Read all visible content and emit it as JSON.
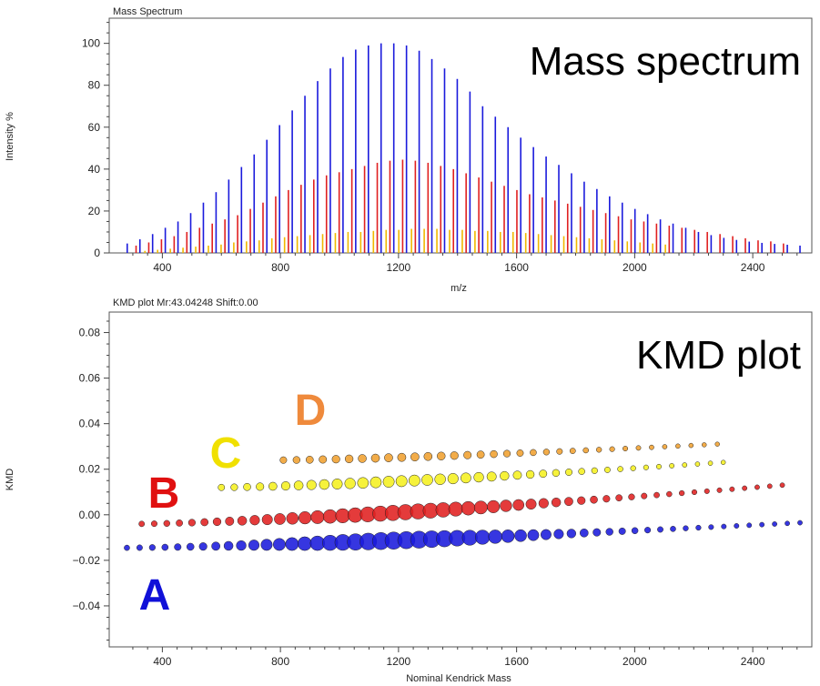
{
  "chart_data": [
    {
      "type": "bar",
      "panel_title": "Mass Spectrum",
      "title": "Mass spectrum",
      "xlabel": "m/z",
      "ylabel": "Intensity %",
      "xlim": [
        220,
        2600
      ],
      "ylim": [
        0,
        112
      ],
      "x_ticks": [
        400,
        800,
        1200,
        1600,
        2000,
        2400
      ],
      "y_ticks": [
        0,
        20,
        40,
        60,
        80,
        100
      ],
      "grid": false,
      "colors": {
        "A": "#1a1adc",
        "B": "#e02020",
        "C": "#f0b800"
      },
      "series": [
        {
          "name": "A",
          "x": [
            281,
            324,
            367,
            410,
            453,
            496,
            539,
            582,
            625,
            668,
            711,
            754,
            797,
            840,
            883,
            926,
            969,
            1012,
            1055,
            1098,
            1141,
            1184,
            1227,
            1270,
            1313,
            1356,
            1399,
            1442,
            1485,
            1528,
            1571,
            1614,
            1657,
            1700,
            1743,
            1786,
            1829,
            1872,
            1915,
            1958,
            2001,
            2044,
            2087,
            2130,
            2173,
            2216,
            2259,
            2302,
            2345,
            2388,
            2431,
            2474,
            2517,
            2560
          ],
          "values": [
            4.5,
            6.5,
            9,
            12,
            15,
            19,
            24,
            29,
            35,
            41,
            47,
            54,
            61,
            68,
            75,
            82,
            88,
            93.5,
            97,
            99,
            100,
            100,
            99,
            96.5,
            92.5,
            88,
            83,
            77,
            70,
            65,
            60,
            55,
            50.5,
            46,
            42,
            38,
            34,
            30.5,
            27,
            24,
            21,
            18.5,
            16,
            14,
            12,
            10,
            8.5,
            7.2,
            6.2,
            5.4,
            4.8,
            4.3,
            3.9,
            3.5
          ]
        },
        {
          "name": "B",
          "x": [
            311,
            354,
            397,
            440,
            483,
            526,
            569,
            612,
            655,
            698,
            741,
            784,
            827,
            870,
            913,
            956,
            999,
            1042,
            1085,
            1128,
            1171,
            1214,
            1257,
            1300,
            1343,
            1386,
            1429,
            1472,
            1515,
            1558,
            1601,
            1644,
            1687,
            1730,
            1773,
            1816,
            1859,
            1902,
            1945,
            1988,
            2031,
            2074,
            2117,
            2160,
            2203,
            2246,
            2289,
            2332,
            2375,
            2418,
            2461,
            2504
          ],
          "values": [
            3.5,
            5,
            6.5,
            8,
            10,
            12,
            14,
            16,
            18,
            21,
            24,
            27,
            30,
            32.5,
            35,
            37,
            38.5,
            40,
            41.5,
            43,
            44,
            44.5,
            44,
            43,
            41.5,
            40,
            38,
            36,
            34,
            32,
            30,
            28,
            26.5,
            25,
            23.5,
            22,
            20.5,
            19,
            17.5,
            16,
            15,
            14,
            13,
            12,
            11,
            10,
            9,
            8,
            7,
            6,
            5.5,
            4.5
          ]
        },
        {
          "name": "C",
          "x": [
            341,
            384,
            427,
            470,
            513,
            556,
            599,
            642,
            685,
            728,
            771,
            814,
            857,
            900,
            943,
            986,
            1029,
            1072,
            1115,
            1158,
            1201,
            1244,
            1287,
            1330,
            1373,
            1416,
            1459,
            1502,
            1545,
            1588,
            1631,
            1674,
            1717,
            1760,
            1803,
            1846,
            1889,
            1932,
            1975,
            2018,
            2061,
            2104
          ],
          "values": [
            1,
            1.5,
            2,
            2.5,
            3,
            3.5,
            4,
            5,
            5.5,
            6,
            7,
            7.5,
            8,
            8.5,
            9,
            9.5,
            10,
            10,
            10.5,
            11,
            11,
            11.5,
            11.5,
            11.5,
            11,
            11,
            10.5,
            10.5,
            10,
            10,
            9.5,
            9,
            8.5,
            8,
            7.5,
            7,
            6.5,
            6,
            5.5,
            5,
            4.5,
            4
          ]
        }
      ]
    },
    {
      "type": "scatter",
      "panel_title": "KMD plot  Mr:43.04248 Shift:0.00",
      "title": "KMD plot",
      "xlabel": "Nominal Kendrick Mass",
      "ylabel": "KMD",
      "xlim": [
        220,
        2600
      ],
      "ylim": [
        -0.058,
        0.089
      ],
      "x_ticks": [
        400,
        800,
        1200,
        1600,
        2000,
        2400
      ],
      "y_ticks": [
        -0.04,
        -0.02,
        0.0,
        0.02,
        0.04,
        0.06,
        0.08
      ],
      "y_tick_labels": [
        "−0.04",
        "−0.02",
        "0.00",
        "0.02",
        "0.04",
        "0.06",
        "0.08"
      ],
      "marker_size": "proportional to intensity",
      "grid": false,
      "series": [
        {
          "name": "A",
          "label": "A",
          "color": "#1a1adc",
          "x_start": 280,
          "x_end": 2560,
          "kmd_start": -0.0145,
          "kmd_end": -0.0035,
          "count": 54
        },
        {
          "name": "B",
          "label": "B",
          "color": "#e02020",
          "x_start": 330,
          "x_end": 2500,
          "kmd_start": -0.004,
          "kmd_end": 0.013,
          "count": 52
        },
        {
          "name": "C",
          "label": "C",
          "color": "#f5f020",
          "x_start": 600,
          "x_end": 2300,
          "kmd_start": 0.012,
          "kmd_end": 0.023,
          "count": 40
        },
        {
          "name": "D",
          "label": "D",
          "color": "#f0a030",
          "x_start": 810,
          "x_end": 2280,
          "kmd_start": 0.024,
          "kmd_end": 0.031,
          "count": 34
        }
      ],
      "label_colors": {
        "A": "#1010d8",
        "B": "#e01010",
        "C": "#f0e000",
        "D": "#ef8a3c"
      }
    }
  ]
}
